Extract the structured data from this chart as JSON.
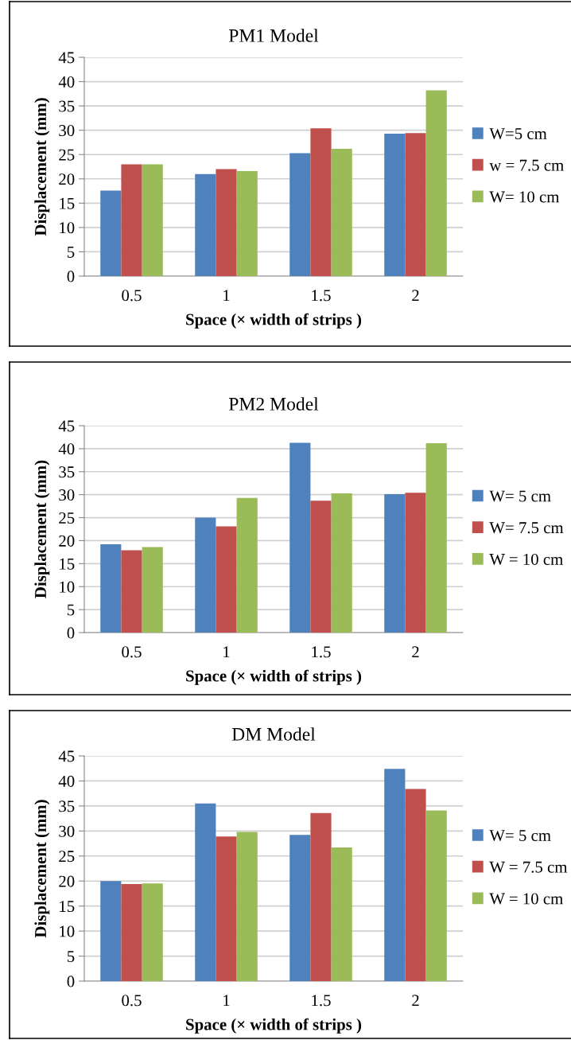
{
  "chart_data": [
    {
      "type": "bar",
      "title": "PM1 Model",
      "xlabel": "Space (× width of strips )",
      "ylabel": "Displacement (mm)",
      "categories": [
        "0.5",
        "1",
        "1.5",
        "2"
      ],
      "series": [
        {
          "name": "W=5 cm",
          "color": "#4f81bd",
          "values": [
            17.6,
            21,
            25.3,
            29.3
          ]
        },
        {
          "name": "w = 7.5 cm",
          "color": "#c0504d",
          "values": [
            23,
            22,
            30.4,
            29.4
          ]
        },
        {
          "name": "W= 10 cm",
          "color": "#9bbb59",
          "values": [
            23,
            21.6,
            26.2,
            38.2
          ]
        }
      ],
      "ylim": [
        0,
        45
      ],
      "yticks": [
        0,
        5,
        10,
        15,
        20,
        25,
        30,
        35,
        40,
        45
      ],
      "grid": "y",
      "legend": "right"
    },
    {
      "type": "bar",
      "title": "PM2 Model",
      "xlabel": "Space (× width of strips )",
      "ylabel": "Displacement (mm)",
      "categories": [
        "0.5",
        "1",
        "1.5",
        "2"
      ],
      "series": [
        {
          "name": "W= 5 cm",
          "color": "#4f81bd",
          "values": [
            19.2,
            25,
            41.3,
            30.1
          ]
        },
        {
          "name": "W= 7.5 cm",
          "color": "#c0504d",
          "values": [
            17.9,
            23.1,
            28.7,
            30.4
          ]
        },
        {
          "name": "W = 10 cm",
          "color": "#9bbb59",
          "values": [
            18.6,
            29.3,
            30.3,
            41.2
          ]
        }
      ],
      "ylim": [
        0,
        45
      ],
      "yticks": [
        0,
        5,
        10,
        15,
        20,
        25,
        30,
        35,
        40,
        45
      ],
      "grid": "y",
      "legend": "right"
    },
    {
      "type": "bar",
      "title": "DM Model",
      "xlabel": "Space (× width of strips )",
      "ylabel": "Displacement (mm)",
      "categories": [
        "0.5",
        "1",
        "1.5",
        "2"
      ],
      "series": [
        {
          "name": "W= 5 cm",
          "color": "#4f81bd",
          "values": [
            20,
            35.5,
            29.2,
            42.4
          ]
        },
        {
          "name": "W = 7.5 cm",
          "color": "#c0504d",
          "values": [
            19.4,
            28.9,
            33.6,
            38.4
          ]
        },
        {
          "name": "W = 10 cm",
          "color": "#9bbb59",
          "values": [
            19.5,
            29.8,
            26.7,
            34.1
          ]
        }
      ],
      "ylim": [
        0,
        45
      ],
      "yticks": [
        0,
        5,
        10,
        15,
        20,
        25,
        30,
        35,
        40,
        45
      ],
      "grid": "y",
      "legend": "right"
    }
  ]
}
